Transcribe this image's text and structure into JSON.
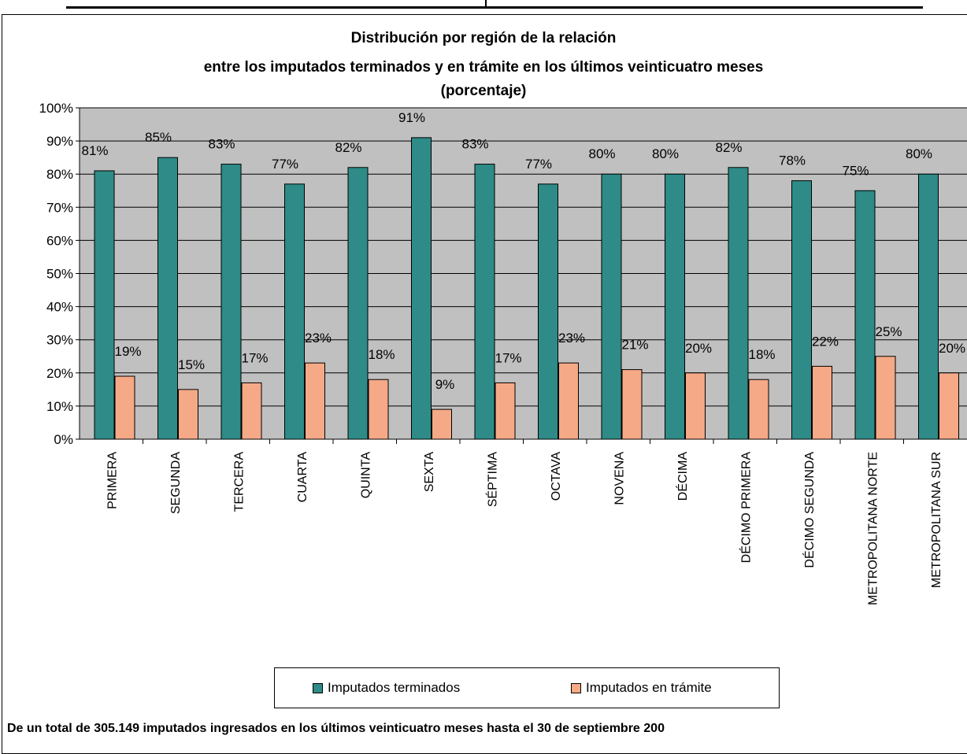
{
  "chart_data": {
    "type": "bar",
    "title": [
      "Distribución por región de la relación",
      "entre los imputados terminados y en trámite en los últimos veinticuatro meses",
      "(porcentaje)"
    ],
    "categories": [
      "PRIMERA",
      "SEGUNDA",
      "TERCERA",
      "CUARTA",
      "QUINTA",
      "SEXTA",
      "SÉPTIMA",
      "OCTAVA",
      "NOVENA",
      "DÉCIMA",
      "DÉCIMO PRIMERA",
      "DÉCIMO SEGUNDA",
      "METROPOLITANA NORTE",
      "METROPOLITANA SUR"
    ],
    "series": [
      {
        "name": "Imputados terminados",
        "color": "#2e8b87",
        "values": [
          81,
          85,
          83,
          77,
          82,
          91,
          83,
          77,
          80,
          80,
          82,
          78,
          75,
          80
        ],
        "labels": [
          "81%",
          "85%",
          "83%",
          "77%",
          "82%",
          "91%",
          "83%",
          "77%",
          "80%",
          "80%",
          "82%",
          "78%",
          "75%",
          "80%"
        ]
      },
      {
        "name": "Imputados en trámite",
        "color": "#f5a986",
        "values": [
          19,
          15,
          17,
          23,
          18,
          9,
          17,
          23,
          21,
          20,
          18,
          22,
          25,
          20
        ],
        "labels": [
          "19%",
          "15%",
          "17%",
          "23%",
          "18%",
          "9%",
          "17%",
          "23%",
          "21%",
          "20%",
          "18%",
          "22%",
          "25%",
          "20%"
        ]
      }
    ],
    "yticks": [
      "0%",
      "10%",
      "20%",
      "30%",
      "40%",
      "50%",
      "60%",
      "70%",
      "80%",
      "90%",
      "100%"
    ],
    "ylim": [
      0,
      100
    ],
    "grid": true,
    "legend_position": "bottom"
  },
  "footnote": "De un total de 305.149 imputados ingresados en los últimos veinticuatro meses hasta el 30 de septiembre 200"
}
